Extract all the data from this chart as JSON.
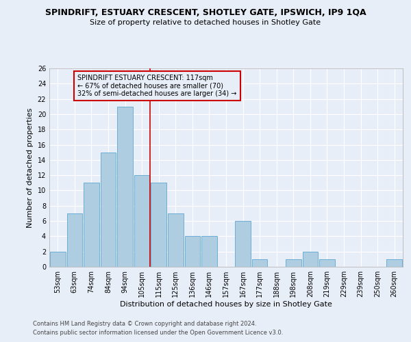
{
  "title": "SPINDRIFT, ESTUARY CRESCENT, SHOTLEY GATE, IPSWICH, IP9 1QA",
  "subtitle": "Size of property relative to detached houses in Shotley Gate",
  "xlabel": "Distribution of detached houses by size in Shotley Gate",
  "ylabel": "Number of detached properties",
  "footer1": "Contains HM Land Registry data © Crown copyright and database right 2024.",
  "footer2": "Contains public sector information licensed under the Open Government Licence v3.0.",
  "annotation_title": "SPINDRIFT ESTUARY CRESCENT: 117sqm",
  "annotation_line1": "← 67% of detached houses are smaller (70)",
  "annotation_line2": "32% of semi-detached houses are larger (34) →",
  "bar_labels": [
    "53sqm",
    "63sqm",
    "74sqm",
    "84sqm",
    "94sqm",
    "105sqm",
    "115sqm",
    "125sqm",
    "136sqm",
    "146sqm",
    "157sqm",
    "167sqm",
    "177sqm",
    "188sqm",
    "198sqm",
    "208sqm",
    "219sqm",
    "229sqm",
    "239sqm",
    "250sqm",
    "260sqm"
  ],
  "bar_values": [
    2,
    7,
    11,
    15,
    21,
    12,
    11,
    7,
    4,
    4,
    0,
    6,
    1,
    0,
    1,
    2,
    1,
    0,
    0,
    0,
    1
  ],
  "bar_color": "#AECDE0",
  "bar_edge_color": "#6BAED6",
  "vline_x_index": 5.5,
  "vline_color": "#CC0000",
  "annotation_box_color": "#CC0000",
  "ylim": [
    0,
    26
  ],
  "yticks": [
    0,
    2,
    4,
    6,
    8,
    10,
    12,
    14,
    16,
    18,
    20,
    22,
    24,
    26
  ],
  "bg_color": "#E8EEF8",
  "grid_color": "#FFFFFF",
  "title_fontsize": 9,
  "subtitle_fontsize": 8,
  "ylabel_fontsize": 8,
  "xlabel_fontsize": 8,
  "tick_fontsize": 7,
  "annot_fontsize": 7,
  "footer_fontsize": 6
}
